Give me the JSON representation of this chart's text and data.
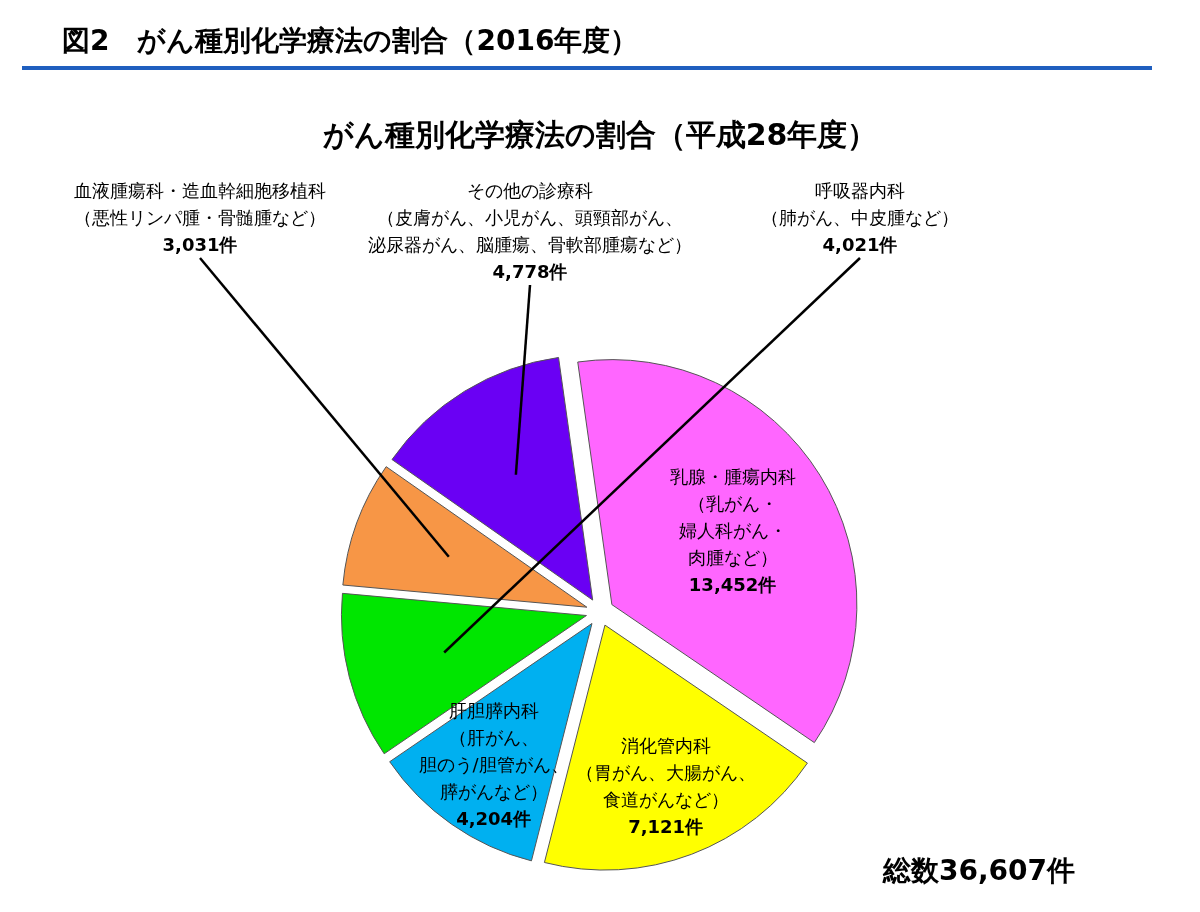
{
  "chart_data": {
    "type": "pie",
    "title": "図2　がん種別化学療法の割合（2016年度）",
    "subtitle": "がん種別化学療法の割合（平成28年度）",
    "categories": [
      "その他の診療科（皮膚がん、小児がん、頭頸部がん、泌尿器がん、脳腫瘍、骨軟部腫瘍など）",
      "乳腺・腫瘍内科（乳がん・婦人科がん・肉腫など）",
      "消化管内科（胃がん、大腸がん、食道がんなど）",
      "肝胆膵内科（肝がん、胆のう/胆管がん、膵がんなど）",
      "呼吸器内科（肺がん、中皮腫など）",
      "血液腫瘍科・造血幹細胞移植科（悪性リンパ腫・骨髄腫など）"
    ],
    "values": [
      4778,
      13452,
      7121,
      4204,
      4021,
      3031
    ],
    "colors": [
      "#6a00f4",
      "#ff66ff",
      "#ffff00",
      "#00b0f0",
      "#00e600",
      "#f79646"
    ],
    "value_labels": [
      "4,778件",
      "13,452件",
      "7,121件",
      "4,204件",
      "4,021件",
      "3,031件"
    ],
    "annotations": [
      "総数36,607件"
    ]
  }
}
